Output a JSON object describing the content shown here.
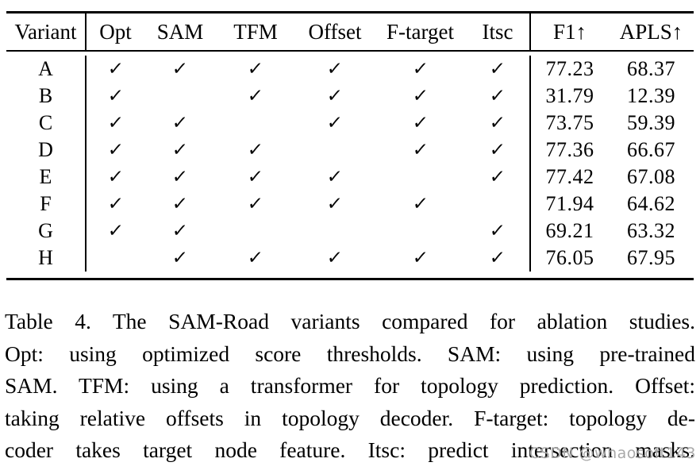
{
  "table": {
    "columns": [
      "Variant",
      "Opt",
      "SAM",
      "TFM",
      "Offset",
      "F-target",
      "Itsc",
      "F1↑",
      "APLS↑"
    ],
    "check_glyph": "✓",
    "rows": [
      {
        "variant": "A",
        "checks": [
          1,
          1,
          1,
          1,
          1,
          1
        ],
        "f1": "77.23",
        "apls": "68.37"
      },
      {
        "variant": "B",
        "checks": [
          1,
          0,
          1,
          1,
          1,
          1
        ],
        "f1": "31.79",
        "apls": "12.39"
      },
      {
        "variant": "C",
        "checks": [
          1,
          1,
          0,
          1,
          1,
          1
        ],
        "f1": "73.75",
        "apls": "59.39"
      },
      {
        "variant": "D",
        "checks": [
          1,
          1,
          1,
          0,
          1,
          1
        ],
        "f1": "77.36",
        "apls": "66.67"
      },
      {
        "variant": "E",
        "checks": [
          1,
          1,
          1,
          1,
          0,
          1
        ],
        "f1": "77.42",
        "apls": "67.08"
      },
      {
        "variant": "F",
        "checks": [
          1,
          1,
          1,
          1,
          1,
          0
        ],
        "f1": "71.94",
        "apls": "64.62"
      },
      {
        "variant": "G",
        "checks": [
          1,
          1,
          0,
          0,
          0,
          1
        ],
        "f1": "69.21",
        "apls": "63.32"
      },
      {
        "variant": "H",
        "checks": [
          0,
          1,
          1,
          1,
          1,
          1
        ],
        "f1": "76.05",
        "apls": "67.95"
      }
    ]
  },
  "caption": {
    "lines": [
      "Table 4.  The SAM-Road variants compared for ablation studies.",
      "Opt:  using optimized score thresholds.  SAM: using pre-trained",
      "SAM. TFM: using a transformer for topology prediction.  Offset:",
      "taking relative offsets in topology decoder. F-target: topology de-",
      "coder takes target node feature. Itsc: predict intersection masks."
    ]
  },
  "watermark": {
    "text": "CSDN @whaosoft143",
    "color": "#a9a9a9"
  },
  "colors": {
    "text": "#000000",
    "background": "#ffffff",
    "rule": "#000000"
  }
}
